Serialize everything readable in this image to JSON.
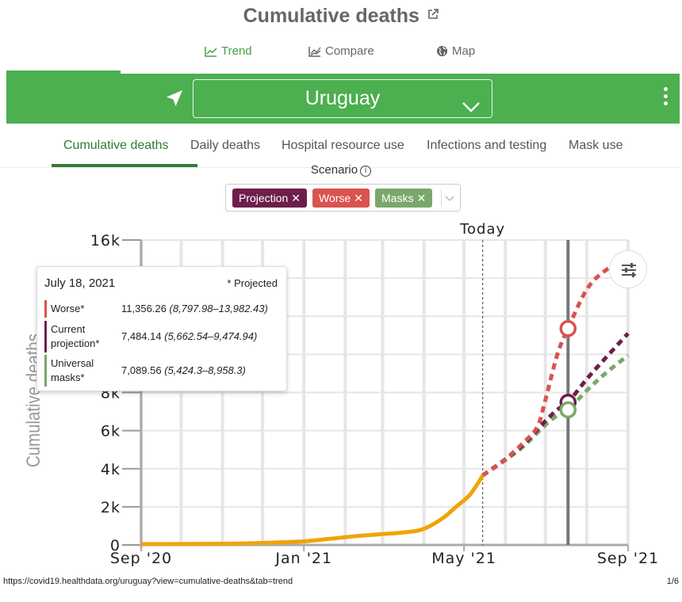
{
  "header": {
    "title": "Cumulative deaths"
  },
  "view_tabs": [
    {
      "label": "Trend",
      "active": true
    },
    {
      "label": "Compare",
      "active": false
    },
    {
      "label": "Map",
      "active": false
    }
  ],
  "location": {
    "name": "Uruguay"
  },
  "metric_tabs": [
    {
      "label": "Cumulative deaths",
      "active": true
    },
    {
      "label": "Daily deaths",
      "active": false
    },
    {
      "label": "Hospital resource use",
      "active": false
    },
    {
      "label": "Infections and testing",
      "active": false
    },
    {
      "label": "Mask use",
      "active": false
    }
  ],
  "scenario": {
    "label": "Scenario",
    "chips": [
      {
        "label": "Projection",
        "color": "#6d1f4b"
      },
      {
        "label": "Worse",
        "color": "#d9534f"
      },
      {
        "label": "Masks",
        "color": "#7aa86a"
      }
    ]
  },
  "tooltip": {
    "date": "July 18, 2021",
    "note": "* Projected",
    "rows": [
      {
        "name": "Worse*",
        "value": "11,356.26",
        "range": "(8,797.98–13,982.43)",
        "color": "#d9534f"
      },
      {
        "name": "Current projection*",
        "value": "7,484.14",
        "range": "(5,662.54–9,474.94)",
        "color": "#6d1f4b"
      },
      {
        "name": "Universal masks*",
        "value": "7,089.56",
        "range": "(5,424.3–8,958.3)",
        "color": "#7aa86a"
      }
    ]
  },
  "chart_data": {
    "type": "line",
    "ylabel": "Cumulative deaths",
    "today_label": "Today",
    "ylim": [
      0,
      16000
    ],
    "y_ticks": [
      0,
      2000,
      4000,
      6000,
      8000,
      10000,
      12000,
      14000,
      16000
    ],
    "y_tick_labels": [
      "0",
      "2k",
      "4k",
      "6k",
      "8k",
      "10k",
      "12k",
      "14k",
      "16k"
    ],
    "x_ticks": [
      "Sep '20",
      "Jan '21",
      "May '21",
      "Sep '21"
    ],
    "x_tick_dates": [
      "2020-09-01",
      "2021-01-01",
      "2021-05-01",
      "2021-09-01"
    ],
    "today_date": "2021-05-15",
    "hover_date": "2021-07-18",
    "series": [
      {
        "name": "Observed",
        "color": "#f0a30a",
        "dashed": false,
        "points": [
          [
            "2020-09-01",
            45
          ],
          [
            "2020-10-15",
            55
          ],
          [
            "2020-11-15",
            80
          ],
          [
            "2020-12-15",
            140
          ],
          [
            "2021-01-01",
            190
          ],
          [
            "2021-01-20",
            320
          ],
          [
            "2021-02-10",
            470
          ],
          [
            "2021-03-01",
            570
          ],
          [
            "2021-03-20",
            680
          ],
          [
            "2021-04-01",
            850
          ],
          [
            "2021-04-15",
            1400
          ],
          [
            "2021-04-25",
            2000
          ],
          [
            "2021-05-05",
            2600
          ],
          [
            "2021-05-12",
            3300
          ],
          [
            "2021-05-15",
            3650
          ]
        ]
      },
      {
        "name": "Worse",
        "color": "#d9534f",
        "dashed": true,
        "points": [
          [
            "2021-05-15",
            3650
          ],
          [
            "2021-06-01",
            4500
          ],
          [
            "2021-06-15",
            5400
          ],
          [
            "2021-06-25",
            6200
          ],
          [
            "2021-07-01",
            7600
          ],
          [
            "2021-07-10",
            10000
          ],
          [
            "2021-07-18",
            11356
          ],
          [
            "2021-08-01",
            13400
          ],
          [
            "2021-08-15",
            14400
          ],
          [
            "2021-09-01",
            15000
          ]
        ]
      },
      {
        "name": "Current projection",
        "color": "#6d1f4b",
        "dashed": true,
        "points": [
          [
            "2021-05-15",
            3650
          ],
          [
            "2021-06-01",
            4500
          ],
          [
            "2021-06-15",
            5300
          ],
          [
            "2021-07-01",
            6500
          ],
          [
            "2021-07-10",
            7100
          ],
          [
            "2021-07-18",
            7484
          ],
          [
            "2021-08-01",
            8700
          ],
          [
            "2021-08-15",
            9800
          ],
          [
            "2021-09-01",
            11100
          ]
        ]
      },
      {
        "name": "Universal masks",
        "color": "#7aa86a",
        "dashed": true,
        "points": [
          [
            "2021-05-15",
            3650
          ],
          [
            "2021-06-01",
            4450
          ],
          [
            "2021-06-15",
            5200
          ],
          [
            "2021-07-01",
            6300
          ],
          [
            "2021-07-10",
            6800
          ],
          [
            "2021-07-18",
            7090
          ],
          [
            "2021-08-01",
            8100
          ],
          [
            "2021-08-15",
            9000
          ],
          [
            "2021-09-01",
            9950
          ]
        ]
      }
    ],
    "hover_markers": [
      {
        "series": "Worse",
        "value": 11356
      },
      {
        "series": "Current projection",
        "value": 7484
      },
      {
        "series": "Universal masks",
        "value": 7090
      }
    ]
  },
  "footer": {
    "url": "https://covid19.healthdata.org/uruguay?view=cumulative-deaths&tab=trend",
    "page": "1/6"
  }
}
